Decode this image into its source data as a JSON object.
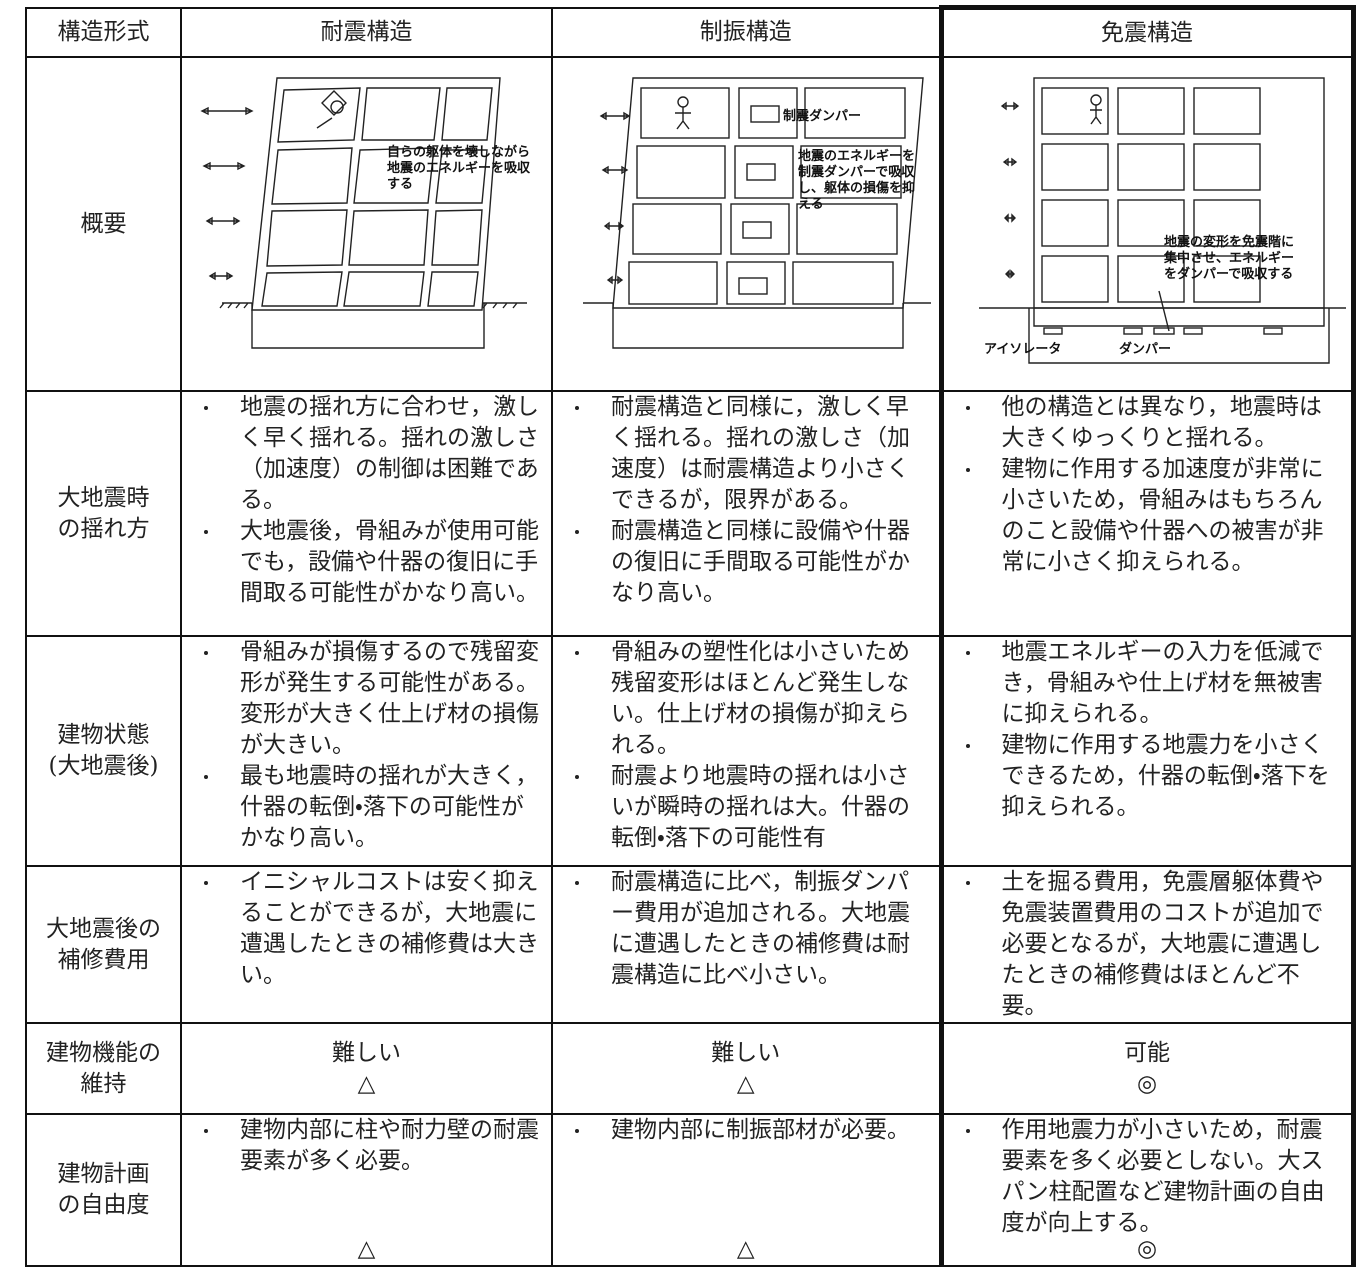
{
  "table": {
    "header": [
      "構造形式",
      "耐震構造",
      "制振構造",
      "免震構造"
    ],
    "overview": {
      "label": "概要",
      "seismic": {
        "note": [
          "自らの躯体を壊しながら",
          "地震のエネルギーを吸収",
          "する"
        ]
      },
      "damping": {
        "damper": "制震ダンパー",
        "note": [
          "地震のエネルギーを",
          "制震ダンパーで吸収",
          "し、躯体の損傷を抑",
          "える"
        ]
      },
      "isolation": {
        "note": [
          "地震の変形を免震階に",
          "集中させ、エネルギー",
          "をダンパーで吸収する"
        ],
        "isolator": "アイソレータ",
        "damper": "ダンパー"
      }
    },
    "rows": [
      {
        "label": [
          "大地震時",
          "の揺れ方"
        ],
        "cells": [
          {
            "bullets": [
              "地震の揺れ方に合わせ，激しく早く揺れる。揺れの激しさ（加速度）の制御は困難である。",
              "大地震後，骨組みが使用可能でも，設備や什器の復旧に手間取る可能性がかなり高い。"
            ]
          },
          {
            "bullets": [
              "耐震構造と同様に，激しく早く揺れる。揺れの激しさ（加速度）は耐震構造より小さくできるが，限界がある。",
              "耐震構造と同様に設備や什器の復旧に手間取る可能性がかなり高い。"
            ]
          },
          {
            "bullets": [
              "他の構造とは異なり，地震時は大きくゆっくりと揺れる。",
              "建物に作用する加速度が非常に小さいため，骨組みはもちろんのこと設備や什器への被害が非常に小さく抑えられる。"
            ]
          }
        ]
      },
      {
        "label": [
          "建物状態",
          "(大地震後)"
        ],
        "cells": [
          {
            "bullets": [
              "骨組みが損傷するので残留変形が発生する可能性がある。変形が大きく仕上げ材の損傷が大きい。",
              "最も地震時の揺れが大きく，什器の転倒・落下の可能性がかなり高い。"
            ]
          },
          {
            "bullets": [
              "骨組みの塑性化は小さいため残留変形はほとんど発生しない。仕上げ材の損傷が抑えられる。",
              "耐震より地震時の揺れは小さいが瞬時の揺れは大。什器の転倒・落下の可能性有"
            ]
          },
          {
            "bullets": [
              "地震エネルギーの入力を低減でき，骨組みや仕上げ材を無被害に抑えられる。",
              "建物に作用する地震力を小さくできるため，什器の転倒・落下を抑えられる。"
            ]
          }
        ]
      },
      {
        "label": [
          "大地震後の",
          "補修費用"
        ],
        "cells": [
          {
            "bullets": [
              "イニシャルコストは安く抑えることができるが，大地震に遭遇したときの補修費は大きい。"
            ]
          },
          {
            "bullets": [
              "耐震構造に比べ，制振ダンパー費用が追加される。大地震に遭遇したときの補修費は耐震構造に比べ小さい。"
            ]
          },
          {
            "bullets": [
              "土を掘る費用，免震層躯体費や免震装置費用のコストが追加で必要となるが，大地震に遭遇したときの補修費はほとんど不要。"
            ]
          }
        ]
      },
      {
        "label": [
          "建物機能の",
          "維持"
        ],
        "cells": [
          {
            "text": "難しい",
            "symbol": "△"
          },
          {
            "text": "難しい",
            "symbol": "△"
          },
          {
            "text": "可能",
            "symbol": "◎"
          }
        ]
      },
      {
        "label": [
          "建物計画",
          "の自由度"
        ],
        "cells": [
          {
            "bullets": [
              "建物内部に柱や耐力壁の耐震要素が多く必要。"
            ],
            "symbol": "△"
          },
          {
            "bullets": [
              "建物内部に制振部材が必要。"
            ],
            "symbol": "△"
          },
          {
            "bullets": [
              "作用地震力が小さいため，耐震要素を多く必要としない。大スパン柱配置など建物計画の自由度が向上する。"
            ],
            "symbol": "◎"
          }
        ]
      }
    ]
  }
}
